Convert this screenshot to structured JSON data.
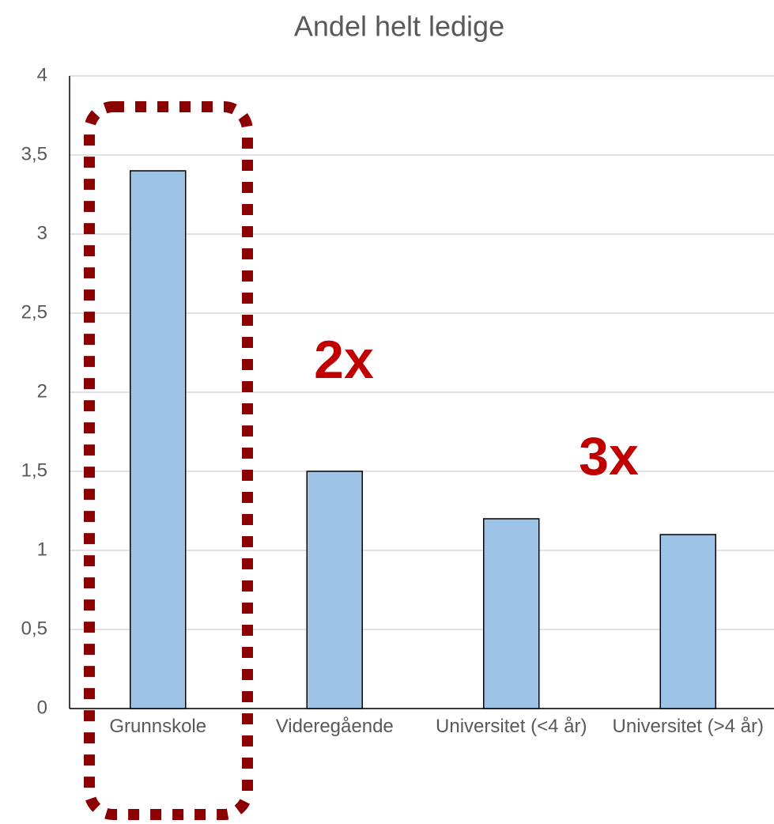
{
  "chart_data": {
    "type": "bar",
    "title": "Andel helt ledige",
    "categories": [
      "Grunnskole",
      "Videregående",
      "Universitet (<4 år)",
      "Universitet (>4 år)"
    ],
    "values": [
      3.4,
      1.5,
      1.2,
      1.1
    ],
    "color": "#9dc3e6",
    "ylim": [
      0,
      4
    ],
    "yticks": [
      0,
      {
        "value": 0.5,
        "label": "0,5"
      },
      1,
      {
        "value": 1.5,
        "label": "1,5"
      },
      2,
      {
        "value": 2.5,
        "label": "2,5"
      },
      3,
      {
        "value": 3.5,
        "label": "3,5"
      },
      4
    ],
    "grid": true,
    "annotations": [
      "2x",
      "3x"
    ]
  }
}
